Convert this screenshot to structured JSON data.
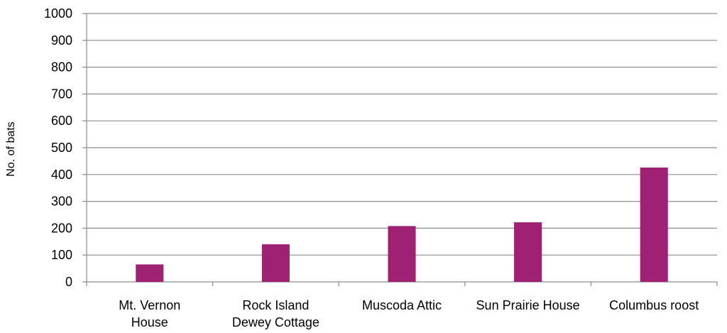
{
  "chart_data": {
    "type": "bar",
    "categories": [
      [
        "Mt. Vernon",
        "House"
      ],
      [
        "Rock Island",
        "Dewey Cottage"
      ],
      [
        "Muscoda Attic"
      ],
      [
        "Sun Prairie House"
      ],
      [
        "Columbus roost"
      ]
    ],
    "values": [
      65,
      140,
      208,
      222,
      426
    ],
    "title": "",
    "xlabel": "",
    "ylabel": "No. of bats",
    "ylim": [
      0,
      1000
    ],
    "yticks": [
      0,
      100,
      200,
      300,
      400,
      500,
      600,
      700,
      800,
      900,
      1000
    ],
    "grid": true,
    "legend": "none",
    "colors": {
      "bar": "#9e2173",
      "grid": "#8c8c8c",
      "axis": "#8c8c8c",
      "text": "#000000"
    }
  }
}
